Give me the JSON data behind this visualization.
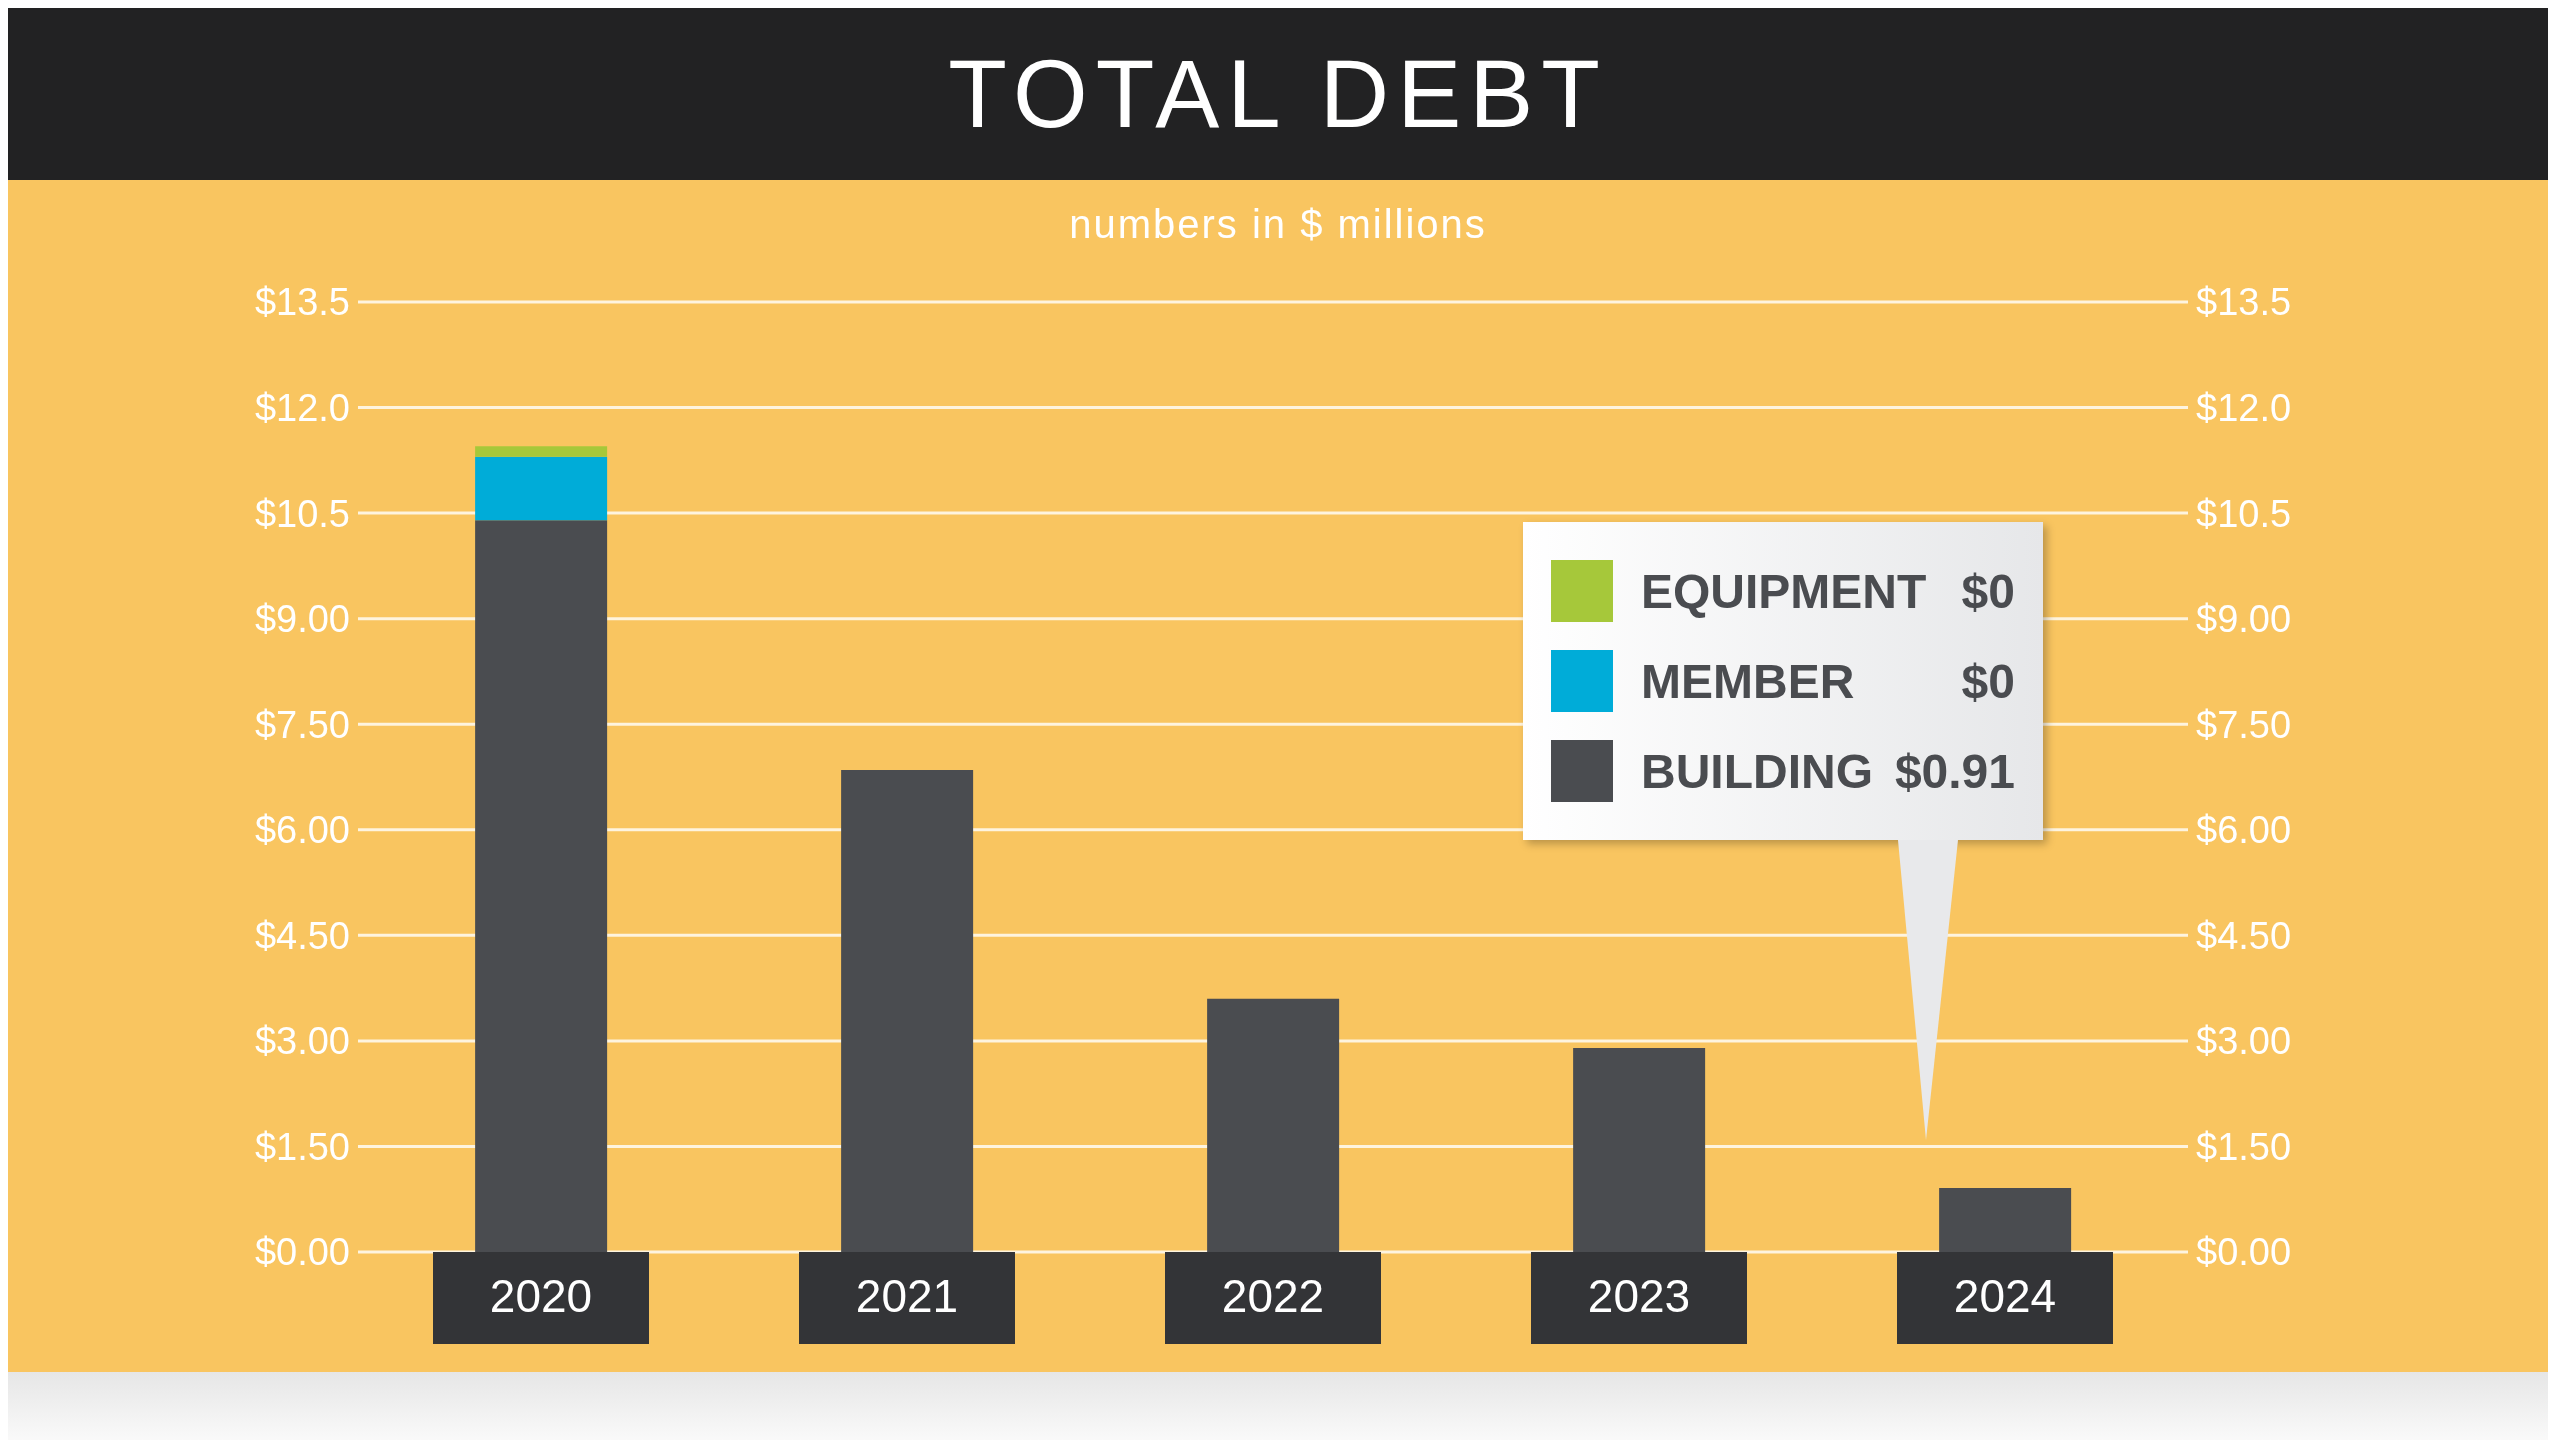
{
  "chart_data": {
    "type": "bar",
    "title": "TOTAL DEBT",
    "subtitle": "numbers in $ millions",
    "categories": [
      "2020",
      "2021",
      "2022",
      "2023",
      "2024"
    ],
    "stacked": true,
    "series": [
      {
        "name": "BUILDING",
        "color": "#4a4c50",
        "values": [
          10.4,
          6.85,
          3.6,
          2.9,
          0.91
        ]
      },
      {
        "name": "MEMBER",
        "color": "#00acd8",
        "values": [
          0.9,
          0,
          0,
          0,
          0
        ]
      },
      {
        "name": "EQUIPMENT",
        "color": "#a6c83a",
        "values": [
          0.15,
          0,
          0,
          0,
          0
        ]
      }
    ],
    "annotations": [
      "$0",
      "$0",
      "$0.91"
    ],
    "ylim": [
      0,
      13.5
    ],
    "yticks": [
      {
        "value": 0,
        "label": "$0.00"
      },
      {
        "value": 1.5,
        "label": "$1.50"
      },
      {
        "value": 3,
        "label": "$3.00"
      },
      {
        "value": 4.5,
        "label": "$4.50"
      },
      {
        "value": 6,
        "label": "$6.00"
      },
      {
        "value": 7.5,
        "label": "$7.50"
      },
      {
        "value": 9,
        "label": "$9.00"
      },
      {
        "value": 10.5,
        "label": "$10.5"
      },
      {
        "value": 12,
        "label": "$12.0"
      },
      {
        "value": 13.5,
        "label": "$13.5"
      }
    ],
    "y2lim": [
      0,
      13.5
    ],
    "y2ticks": [
      {
        "value": 0,
        "label": "$0.00"
      },
      {
        "value": 1.5,
        "label": "$1.50"
      },
      {
        "value": 3,
        "label": "$3.00"
      },
      {
        "value": 4.5,
        "label": "$4.50"
      },
      {
        "value": 6,
        "label": "$6.00"
      },
      {
        "value": 7.5,
        "label": "$7.50"
      },
      {
        "value": 9,
        "label": "$9.00"
      },
      {
        "value": 10.5,
        "label": "$10.5"
      },
      {
        "value": 12,
        "label": "$12.0"
      },
      {
        "value": 13.5,
        "label": "$13.5"
      }
    ],
    "grid": "y",
    "legend": "right"
  }
}
